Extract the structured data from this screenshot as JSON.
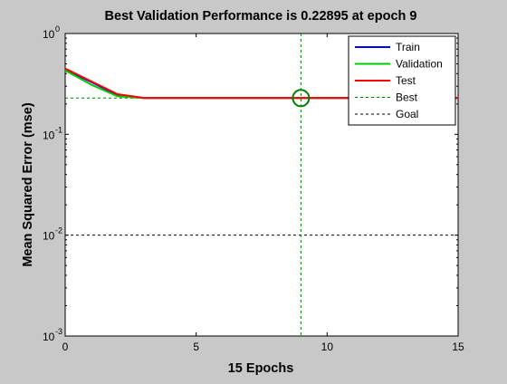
{
  "colors": {
    "figure_bg": "#c8c8c8",
    "plot_bg": "#ffffff",
    "train": "#0000ff",
    "validation": "#00cc00",
    "test": "#ff0000",
    "best": "#007f00",
    "goal": "#000000"
  },
  "chart_data": {
    "type": "line",
    "title": "Best Validation Performance is 0.22895 at epoch 9",
    "xlabel": "15 Epochs",
    "ylabel": "Mean Squared Error  (mse)",
    "yscale": "log",
    "xlim": [
      0,
      15
    ],
    "ylim": [
      0.001,
      1
    ],
    "xticks": [
      0,
      5,
      10,
      15
    ],
    "xtick_labels": [
      "0",
      "5",
      "10",
      "15"
    ],
    "yticks": [
      {
        "value": 0.001,
        "base": "10",
        "exp": "-3"
      },
      {
        "value": 0.01,
        "base": "10",
        "exp": "-2"
      },
      {
        "value": 0.1,
        "base": "10",
        "exp": "-1"
      },
      {
        "value": 1,
        "base": "10",
        "exp": "0"
      }
    ],
    "grid": false,
    "legend_position": "top-right",
    "series": [
      {
        "name": "Train",
        "color": "#0000ff",
        "x": [
          0,
          1,
          2,
          3,
          4,
          5,
          6,
          7,
          8,
          9,
          10,
          11,
          12,
          13,
          14,
          15
        ],
        "y": [
          0.44,
          0.33,
          0.245,
          0.229,
          0.229,
          0.229,
          0.229,
          0.229,
          0.229,
          0.229,
          0.229,
          0.229,
          0.229,
          0.229,
          0.229,
          0.229
        ]
      },
      {
        "name": "Validation",
        "color": "#00cc00",
        "x": [
          0,
          1,
          2,
          3,
          4,
          5,
          6,
          7,
          8,
          9,
          10,
          11,
          12,
          13,
          14,
          15
        ],
        "y": [
          0.43,
          0.31,
          0.238,
          0.229,
          0.229,
          0.229,
          0.229,
          0.229,
          0.229,
          0.22895,
          0.229,
          0.229,
          0.229,
          0.229,
          0.229,
          0.229
        ]
      },
      {
        "name": "Test",
        "color": "#ff0000",
        "x": [
          0,
          1,
          2,
          3,
          4,
          5,
          6,
          7,
          8,
          9,
          10,
          11,
          12,
          13,
          14,
          15
        ],
        "y": [
          0.45,
          0.335,
          0.25,
          0.23,
          0.23,
          0.23,
          0.23,
          0.23,
          0.23,
          0.23,
          0.23,
          0.23,
          0.23,
          0.23,
          0.23,
          0.23
        ]
      }
    ],
    "best": {
      "label": "Best",
      "epoch": 9,
      "value": 0.22895,
      "color": "#007f00"
    },
    "goal": {
      "label": "Goal",
      "value": 0.01,
      "color": "#000000"
    }
  }
}
